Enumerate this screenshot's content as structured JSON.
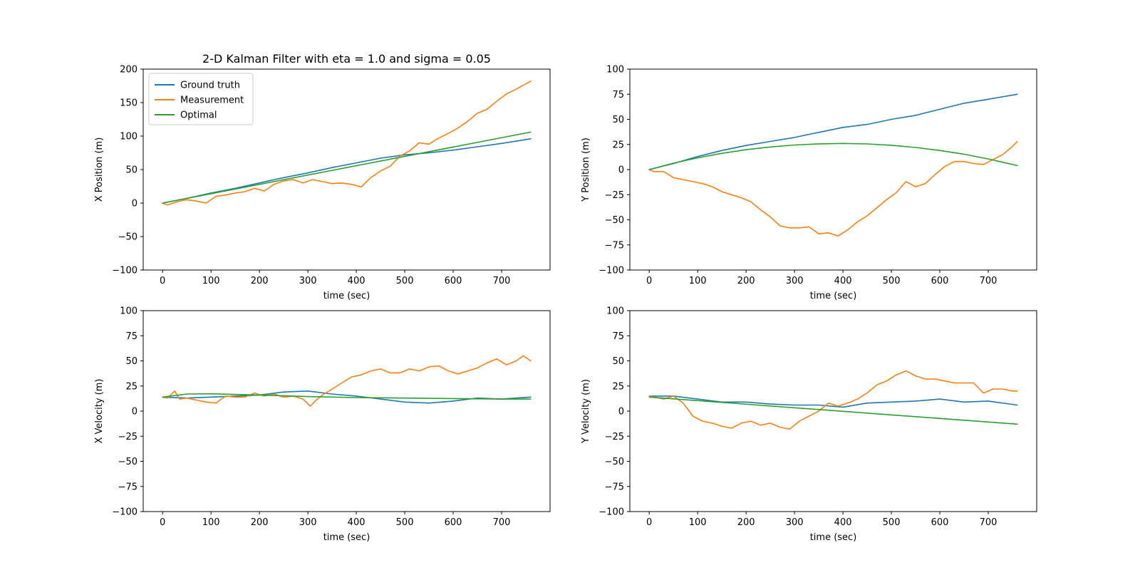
{
  "figure_title": "2-D Kalman Filter with eta = 1.0 and sigma = 0.05",
  "colors": {
    "ground_truth": "#1f77b4",
    "measurement": "#ff7f0e",
    "optimal": "#2ca02c"
  },
  "chart_data": [
    {
      "type": "line",
      "id": "x-position",
      "title": "2-D Kalman Filter with eta = 1.0 and sigma = 0.05",
      "xlabel": "time (sec)",
      "ylabel": "X Position (m)",
      "xlim": [
        -40,
        800
      ],
      "ylim": [
        -100,
        200
      ],
      "xticks": [
        0,
        100,
        200,
        300,
        400,
        500,
        600,
        700
      ],
      "yticks": [
        -100,
        -50,
        0,
        50,
        100,
        150,
        200
      ],
      "grid": false,
      "legend": {
        "position": "top-left",
        "entries": [
          "Ground truth",
          "Measurement",
          "Optimal"
        ]
      },
      "series": [
        {
          "name": "Ground truth",
          "color": "#1f77b4",
          "x": [
            0,
            50,
            100,
            150,
            200,
            250,
            300,
            350,
            400,
            450,
            500,
            550,
            600,
            650,
            700,
            760
          ],
          "y": [
            0,
            7,
            15,
            22,
            30,
            38,
            45,
            53,
            60,
            67,
            72,
            75,
            79,
            84,
            89,
            96
          ]
        },
        {
          "name": "Measurement",
          "color": "#ff7f0e",
          "x": [
            0,
            10,
            30,
            50,
            70,
            90,
            110,
            130,
            150,
            170,
            190,
            210,
            230,
            250,
            270,
            290,
            310,
            330,
            350,
            370,
            390,
            410,
            430,
            450,
            470,
            490,
            510,
            530,
            550,
            570,
            590,
            610,
            630,
            650,
            670,
            690,
            710,
            730,
            750,
            760
          ],
          "y": [
            0,
            -3,
            2,
            5,
            3,
            0,
            10,
            12,
            15,
            17,
            22,
            18,
            28,
            33,
            35,
            30,
            35,
            32,
            29,
            30,
            28,
            24,
            38,
            48,
            55,
            70,
            78,
            90,
            88,
            97,
            104,
            112,
            122,
            134,
            140,
            152,
            163,
            170,
            178,
            182
          ]
        },
        {
          "name": "Optimal",
          "color": "#2ca02c",
          "x": [
            0,
            760
          ],
          "y": [
            0,
            106
          ]
        }
      ]
    },
    {
      "type": "line",
      "id": "y-position",
      "xlabel": "time (sec)",
      "ylabel": "Y Position (m)",
      "xlim": [
        -40,
        800
      ],
      "ylim": [
        -100,
        100
      ],
      "xticks": [
        0,
        100,
        200,
        300,
        400,
        500,
        600,
        700
      ],
      "yticks": [
        -100,
        -75,
        -50,
        -25,
        0,
        25,
        50,
        75,
        100
      ],
      "grid": false,
      "series": [
        {
          "name": "Ground truth",
          "color": "#1f77b4",
          "x": [
            0,
            50,
            100,
            150,
            200,
            250,
            300,
            350,
            400,
            450,
            500,
            550,
            600,
            650,
            700,
            760
          ],
          "y": [
            0,
            6,
            13,
            19,
            24,
            28,
            32,
            37,
            42,
            45,
            50,
            54,
            60,
            66,
            70,
            75
          ]
        },
        {
          "name": "Measurement",
          "color": "#ff7f0e",
          "x": [
            0,
            10,
            30,
            50,
            70,
            90,
            110,
            130,
            150,
            170,
            190,
            210,
            230,
            250,
            270,
            290,
            310,
            330,
            350,
            370,
            390,
            410,
            430,
            450,
            470,
            490,
            510,
            530,
            550,
            570,
            590,
            610,
            630,
            650,
            670,
            690,
            710,
            730,
            750,
            760
          ],
          "y": [
            0,
            -2,
            -2,
            -8,
            -10,
            -12,
            -14,
            -17,
            -22,
            -25,
            -28,
            -32,
            -40,
            -47,
            -56,
            -58,
            -58,
            -57,
            -64,
            -63,
            -66,
            -60,
            -52,
            -46,
            -38,
            -30,
            -23,
            -12,
            -17,
            -14,
            -5,
            3,
            8,
            8,
            6,
            5,
            10,
            15,
            23,
            28
          ]
        },
        {
          "name": "Optimal",
          "color": "#2ca02c",
          "x": [
            0,
            50,
            100,
            150,
            200,
            250,
            300,
            350,
            400,
            450,
            500,
            550,
            600,
            650,
            700,
            760
          ],
          "y": [
            0,
            6.4,
            11.7,
            16.2,
            19.8,
            22.5,
            24.5,
            25.6,
            26,
            25.5,
            24.2,
            22,
            19,
            15.3,
            10.6,
            4
          ]
        }
      ]
    },
    {
      "type": "line",
      "id": "x-velocity",
      "xlabel": "time (sec)",
      "ylabel": "X Velocity (m)",
      "xlim": [
        -40,
        800
      ],
      "ylim": [
        -100,
        100
      ],
      "xticks": [
        0,
        100,
        200,
        300,
        400,
        500,
        600,
        700
      ],
      "yticks": [
        -100,
        -75,
        -50,
        -25,
        0,
        25,
        50,
        75,
        100
      ],
      "grid": false,
      "series": [
        {
          "name": "Ground truth",
          "color": "#1f77b4",
          "x": [
            0,
            50,
            100,
            150,
            200,
            250,
            300,
            350,
            400,
            450,
            500,
            550,
            600,
            650,
            700,
            760
          ],
          "y": [
            14,
            13,
            14,
            15,
            16,
            19,
            20,
            17,
            15,
            12,
            9,
            8,
            10,
            13,
            12,
            14
          ]
        },
        {
          "name": "Measurement",
          "color": "#ff7f0e",
          "x": [
            0,
            10,
            25,
            35,
            50,
            70,
            90,
            110,
            130,
            150,
            170,
            190,
            210,
            230,
            250,
            270,
            290,
            305,
            315,
            330,
            350,
            370,
            390,
            410,
            430,
            450,
            470,
            490,
            510,
            530,
            550,
            570,
            590,
            610,
            630,
            650,
            670,
            690,
            710,
            730,
            745,
            760
          ],
          "y": [
            14,
            13,
            20,
            12,
            13,
            11,
            9,
            8,
            15,
            14,
            14,
            18,
            15,
            17,
            14,
            15,
            12,
            5,
            10,
            16,
            22,
            28,
            34,
            36,
            40,
            42,
            38,
            38,
            42,
            40,
            44,
            45,
            40,
            37,
            40,
            43,
            48,
            52,
            46,
            50,
            55,
            50
          ]
        },
        {
          "name": "Optimal",
          "color": "#2ca02c",
          "x": [
            0,
            50,
            100,
            200,
            300,
            400,
            500,
            600,
            700,
            760
          ],
          "y": [
            14,
            17,
            17.2,
            16,
            14.5,
            13.5,
            13,
            12.5,
            12,
            12
          ]
        }
      ]
    },
    {
      "type": "line",
      "id": "y-velocity",
      "xlabel": "time (sec)",
      "ylabel": "Y Velocity (m)",
      "xlim": [
        -40,
        800
      ],
      "ylim": [
        -100,
        100
      ],
      "xticks": [
        0,
        100,
        200,
        300,
        400,
        500,
        600,
        700
      ],
      "yticks": [
        -100,
        -75,
        -50,
        -25,
        0,
        25,
        50,
        75,
        100
      ],
      "grid": false,
      "series": [
        {
          "name": "Ground truth",
          "color": "#1f77b4",
          "x": [
            0,
            50,
            100,
            150,
            200,
            250,
            300,
            350,
            400,
            450,
            500,
            550,
            600,
            650,
            700,
            760
          ],
          "y": [
            15,
            15,
            12,
            9,
            9,
            7,
            6,
            6,
            4,
            8,
            9,
            10,
            12,
            9,
            10,
            6
          ]
        },
        {
          "name": "Measurement",
          "color": "#ff7f0e",
          "x": [
            0,
            10,
            30,
            50,
            70,
            90,
            110,
            130,
            150,
            170,
            190,
            210,
            230,
            250,
            270,
            290,
            310,
            330,
            350,
            370,
            390,
            410,
            430,
            450,
            470,
            490,
            510,
            530,
            550,
            570,
            590,
            610,
            630,
            650,
            670,
            690,
            710,
            730,
            750,
            760
          ],
          "y": [
            15,
            14,
            12,
            15,
            8,
            -5,
            -10,
            -12,
            -15,
            -17,
            -12,
            -10,
            -14,
            -12,
            -16,
            -18,
            -10,
            -5,
            0,
            8,
            5,
            8,
            12,
            18,
            26,
            30,
            36,
            40,
            35,
            32,
            32,
            30,
            28,
            28,
            28,
            18,
            22,
            22,
            20,
            20
          ]
        },
        {
          "name": "Optimal",
          "color": "#2ca02c",
          "x": [
            0,
            760
          ],
          "y": [
            14,
            -13
          ]
        }
      ]
    }
  ]
}
